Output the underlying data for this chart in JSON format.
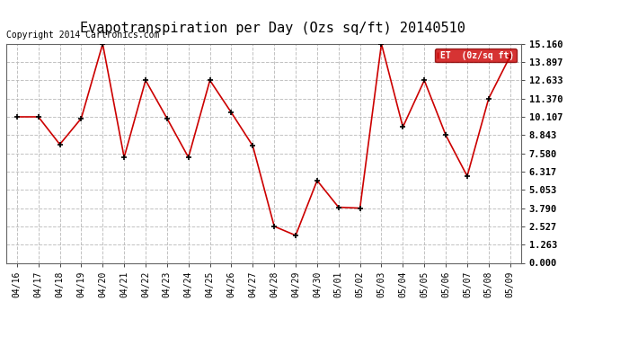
{
  "title": "Evapotranspiration per Day (Ozs sq/ft) 20140510",
  "copyright": "Copyright 2014 Cartronics.com",
  "legend_label": "ET  (0z/sq ft)",
  "x_labels": [
    "04/16",
    "04/17",
    "04/18",
    "04/19",
    "04/20",
    "04/21",
    "04/22",
    "04/23",
    "04/24",
    "04/25",
    "04/26",
    "04/27",
    "04/28",
    "04/29",
    "04/30",
    "05/01",
    "05/02",
    "05/03",
    "05/04",
    "05/05",
    "05/06",
    "05/07",
    "05/08",
    "05/09"
  ],
  "y_values": [
    10.107,
    10.107,
    8.2,
    10.0,
    15.16,
    7.3,
    12.633,
    10.0,
    7.3,
    12.633,
    10.4,
    8.1,
    2.527,
    1.9,
    5.7,
    3.85,
    3.79,
    15.16,
    9.4,
    12.633,
    8.843,
    6.0,
    11.37,
    14.3
  ],
  "y_ticks": [
    0.0,
    1.263,
    2.527,
    3.79,
    5.053,
    6.317,
    7.58,
    8.843,
    10.107,
    11.37,
    12.633,
    13.897,
    15.16
  ],
  "ylim": [
    0.0,
    15.16
  ],
  "line_color": "#cc0000",
  "marker_color": "#000000",
  "grid_color": "#bbbbbb",
  "background_color": "#ffffff",
  "legend_bg": "#cc0000",
  "legend_text_color": "#ffffff",
  "title_fontsize": 11,
  "tick_fontsize": 7,
  "copyright_fontsize": 7
}
